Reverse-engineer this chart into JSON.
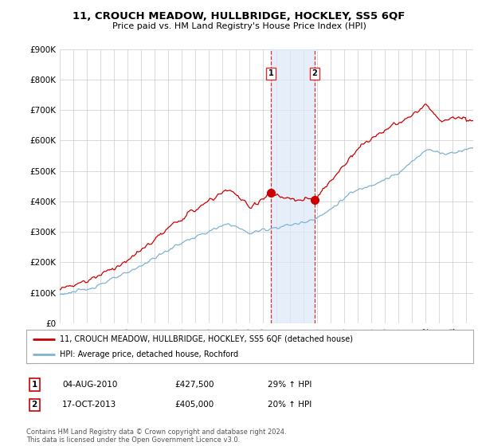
{
  "title": "11, CROUCH MEADOW, HULLBRIDGE, HOCKLEY, SS5 6QF",
  "subtitle": "Price paid vs. HM Land Registry's House Price Index (HPI)",
  "ylim": [
    0,
    900000
  ],
  "xlim_start": 1995.0,
  "xlim_end": 2025.5,
  "yticks": [
    0,
    100000,
    200000,
    300000,
    400000,
    500000,
    600000,
    700000,
    800000,
    900000
  ],
  "ytick_labels": [
    "£0",
    "£100K",
    "£200K",
    "£300K",
    "£400K",
    "£500K",
    "£600K",
    "£700K",
    "£800K",
    "£900K"
  ],
  "xticks": [
    1995,
    1996,
    1997,
    1998,
    1999,
    2000,
    2001,
    2002,
    2003,
    2004,
    2005,
    2006,
    2007,
    2008,
    2009,
    2010,
    2011,
    2012,
    2013,
    2014,
    2015,
    2016,
    2017,
    2018,
    2019,
    2020,
    2021,
    2022,
    2023,
    2024,
    2025
  ],
  "sale1_x": 2010.585,
  "sale1_y": 427500,
  "sale2_x": 2013.79,
  "sale2_y": 405000,
  "shade_color": "#dce8f8",
  "shade_alpha": 0.7,
  "vline_color": "#cc3333",
  "red_line_color": "#cc0000",
  "blue_line_color": "#7fb3d3",
  "legend_label_red": "11, CROUCH MEADOW, HULLBRIDGE, HOCKLEY, SS5 6QF (detached house)",
  "legend_label_blue": "HPI: Average price, detached house, Rochford",
  "transaction1_date": "04-AUG-2010",
  "transaction1_price": "£427,500",
  "transaction1_hpi": "29% ↑ HPI",
  "transaction2_date": "17-OCT-2013",
  "transaction2_price": "£405,000",
  "transaction2_hpi": "20% ↑ HPI",
  "footer": "Contains HM Land Registry data © Crown copyright and database right 2024.\nThis data is licensed under the Open Government Licence v3.0.",
  "background_color": "#ffffff",
  "grid_color": "#cccccc"
}
